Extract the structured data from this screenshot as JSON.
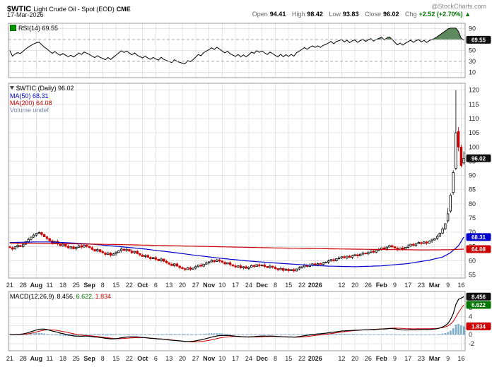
{
  "header": {
    "symbol": "$WTIC",
    "title": "Light Crude Oil - Spot (EOD)",
    "exchange": "CME",
    "credit": "@StockCharts.com",
    "date": "17-Mar-2026",
    "quote": {
      "open_label": "Open",
      "open": "94.41",
      "high_label": "High",
      "high": "98.42",
      "low_label": "Low",
      "low": "93.83",
      "close_label": "Close",
      "close": "96.02",
      "chg_label": "Chg",
      "chg": "+2.52 (+2.70%) ▲"
    }
  },
  "rsi_panel": {
    "label": "RSI(14) 69.55"
  },
  "price_panel": {
    "title": "$WTIC (Daily) 96.02",
    "ma50_label": "MA(50) 68.31",
    "ma200_label": "MA(200) 64.08",
    "volume_label": "Volume undef"
  },
  "macd_panel": {
    "title": "MACD(12,26,9)",
    "v1": "8.456,",
    "v2": "6.622,",
    "v3": "1.834"
  },
  "colors": {
    "up_stroke": "#000000",
    "up_fill": "#ffffff",
    "down": "#cc0000",
    "ma50": "#0000cc",
    "ma200": "#cc0000",
    "rsi_line": "#000000",
    "rsi_fill": "#4c7e4c",
    "macd_line": "#000000",
    "signal_line": "#cc0000",
    "histogram": "#7aaecb",
    "grid": "#e4e4e4",
    "panel_border": "#999999",
    "badge_dark": "#111111",
    "badge_blue": "#0000cc",
    "badge_red": "#cc0000",
    "badge_green": "#007700",
    "chg_green": "#007700"
  },
  "badges": {
    "rsi": [
      {
        "text": "69.55",
        "value": 69.55,
        "bg": "#111111"
      }
    ],
    "price": [
      {
        "text": "96.02",
        "value": 96.02,
        "bg": "#111111"
      },
      {
        "text": "68.31",
        "value": 68.31,
        "bg": "#0000cc"
      },
      {
        "text": "64.08",
        "value": 64.08,
        "bg": "#cc0000"
      }
    ],
    "macd": [
      {
        "text": "8.456",
        "value": 8.456,
        "bg": "#111111"
      },
      {
        "text": "6.622",
        "value": 6.622,
        "bg": "#007700"
      },
      {
        "text": "1.834",
        "value": 1.834,
        "bg": "#cc0000"
      }
    ]
  },
  "chart_data": [
    {
      "panel": "rsi",
      "type": "line",
      "title": "RSI(14)",
      "last_value": 69.55,
      "period": 14,
      "y_ticks": [
        90,
        70,
        50,
        30,
        10
      ],
      "ylim": [
        0,
        100
      ],
      "overbought": 70,
      "oversold": 30,
      "note": "RSI(14) series is computed from the daily closes in the price panel; final value 69.55; overbought region above 70 shaded green near chart end"
    },
    {
      "panel": "price",
      "type": "candlestick",
      "title": "$WTIC (Daily)",
      "last_close": 96.02,
      "y_ticks": [
        120,
        115,
        110,
        105,
        100,
        95,
        90,
        85,
        80,
        75,
        70,
        65,
        60,
        55
      ],
      "ylim": [
        53.9,
        122.4
      ],
      "days_per_week": 5,
      "weeks": 35,
      "closes": [
        64.6,
        64.1,
        64.9,
        65.4,
        65.0,
        65.8,
        66.7,
        67.5,
        68.3,
        69.0,
        69.6,
        69.9,
        69.2,
        68.4,
        67.8,
        67.0,
        66.2,
        66.8,
        65.9,
        65.3,
        65.8,
        65.1,
        64.5,
        64.9,
        64.2,
        64.7,
        65.3,
        64.8,
        65.5,
        65.1,
        64.6,
        64.0,
        63.4,
        63.9,
        63.2,
        62.8,
        62.2,
        62.7,
        61.9,
        62.4,
        62.9,
        63.5,
        64.1,
        63.6,
        64.0,
        63.4,
        62.8,
        63.3,
        62.5,
        62.0,
        61.5,
        61.9,
        61.2,
        60.7,
        61.1,
        60.5,
        60.0,
        60.6,
        59.8,
        59.3,
        58.8,
        58.3,
        58.9,
        58.1,
        57.6,
        57.2,
        56.9,
        57.5,
        57.0,
        57.4,
        57.9,
        58.5,
        58.1,
        58.8,
        59.2,
        59.6,
        60.1,
        59.7,
        60.3,
        59.9,
        59.4,
        58.9,
        59.3,
        58.6,
        58.2,
        57.8,
        58.2,
        57.5,
        57.9,
        57.3,
        57.7,
        58.3,
        58.0,
        58.6,
        58.2,
        58.5,
        58.0,
        57.6,
        58.1,
        57.7,
        57.2,
        56.8,
        57.3,
        56.6,
        57.0,
        56.5,
        56.9,
        56.4,
        57.1,
        57.5,
        57.9,
        58.4,
        58.0,
        58.5,
        58.9,
        58.6,
        59.0,
        58.7,
        59.2,
        59.5,
        59.9,
        60.4,
        60.0,
        60.7,
        61.0,
        61.4,
        61.0,
        61.6,
        61.2,
        61.8,
        62.1,
        61.7,
        62.3,
        62.7,
        62.4,
        62.9,
        63.4,
        63.0,
        63.6,
        64.0,
        64.5,
        64.1,
        64.8,
        65.3,
        64.9,
        64.4,
        63.9,
        64.5,
        64.1,
        64.7,
        65.2,
        65.8,
        65.4,
        66.0,
        66.4,
        66.0,
        66.6,
        66.2,
        66.9,
        67.3,
        67.8,
        68.6,
        69.7,
        71.2,
        73.0,
        76.5,
        83.0,
        91.0,
        105.0,
        100.0,
        93.5,
        96.02
      ],
      "ohlc_overrides": {
        "165": [
          74.0,
          78.5,
          73.2,
          76.5
        ],
        "166": [
          77.5,
          83.6,
          76.8,
          83.0
        ],
        "167": [
          84.0,
          91.8,
          83.2,
          91.0
        ],
        "168": [
          92.5,
          120.0,
          91.8,
          105.0
        ],
        "169": [
          105.5,
          107.0,
          98.5,
          100.0
        ],
        "170": [
          100.0,
          100.8,
          92.8,
          93.5
        ],
        "171": [
          94.41,
          98.42,
          93.83,
          96.02
        ]
      },
      "ma50_points": [
        [
          0,
          66.4
        ],
        [
          10,
          66.6
        ],
        [
          15,
          66.6
        ],
        [
          20,
          66.4
        ],
        [
          30,
          65.9
        ],
        [
          40,
          65.1
        ],
        [
          50,
          64.2
        ],
        [
          60,
          63.1
        ],
        [
          70,
          61.9
        ],
        [
          80,
          60.8
        ],
        [
          90,
          59.9
        ],
        [
          100,
          59.2
        ],
        [
          110,
          58.6
        ],
        [
          120,
          58.1
        ],
        [
          130,
          57.9
        ],
        [
          140,
          58.2
        ],
        [
          150,
          59.0
        ],
        [
          158,
          60.2
        ],
        [
          163,
          61.3
        ],
        [
          166,
          62.8
        ],
        [
          169,
          65.3
        ],
        [
          171,
          68.31
        ]
      ],
      "ma200_points": [
        [
          0,
          66.2
        ],
        [
          20,
          66.0
        ],
        [
          40,
          65.7
        ],
        [
          60,
          65.3
        ],
        [
          80,
          64.9
        ],
        [
          100,
          64.5
        ],
        [
          120,
          64.2
        ],
        [
          140,
          63.95
        ],
        [
          155,
          63.8
        ],
        [
          165,
          63.85
        ],
        [
          171,
          64.08
        ]
      ],
      "x_ticks": [
        [
          "21",
          0,
          0
        ],
        [
          "28",
          1,
          0
        ],
        [
          "Aug",
          2,
          1
        ],
        [
          "11",
          3,
          0
        ],
        [
          "18",
          4,
          0
        ],
        [
          "25",
          5,
          0
        ],
        [
          "Sep",
          6,
          1
        ],
        [
          "8",
          7,
          0
        ],
        [
          "15",
          8,
          0
        ],
        [
          "22",
          9,
          0
        ],
        [
          "Oct",
          10,
          1
        ],
        [
          "6",
          11,
          0
        ],
        [
          "13",
          12,
          0
        ],
        [
          "20",
          13,
          0
        ],
        [
          "27",
          14,
          0
        ],
        [
          "Nov",
          15,
          1
        ],
        [
          "10",
          16,
          0
        ],
        [
          "17",
          17,
          0
        ],
        [
          "24",
          18,
          0
        ],
        [
          "Dec",
          19,
          1
        ],
        [
          "8",
          20,
          0
        ],
        [
          "15",
          21,
          0
        ],
        [
          "22",
          22,
          0
        ],
        [
          "2026",
          23,
          1
        ],
        [
          "12",
          25,
          0
        ],
        [
          "20",
          26,
          0
        ],
        [
          "26",
          27,
          0
        ],
        [
          "Feb",
          28,
          1
        ],
        [
          "9",
          29,
          0
        ],
        [
          "17",
          30,
          0
        ],
        [
          "23",
          31,
          0
        ],
        [
          "Mar",
          32,
          1
        ],
        [
          "9",
          33,
          0
        ],
        [
          "16",
          34,
          0
        ]
      ]
    },
    {
      "panel": "macd",
      "type": "line+histogram",
      "title": "MACD(12,26,9)",
      "last_values": {
        "macd": 8.456,
        "signal": 6.622,
        "hist": 1.834
      },
      "y_ticks": [
        8,
        6,
        4,
        2,
        0,
        -2
      ],
      "ylim": [
        -3.6,
        9.6
      ],
      "note": "MACD(12,26,9) line, red signal line and blue histogram computed from the daily closes; ends at 8.456 / 6.622 / 1.834"
    }
  ]
}
